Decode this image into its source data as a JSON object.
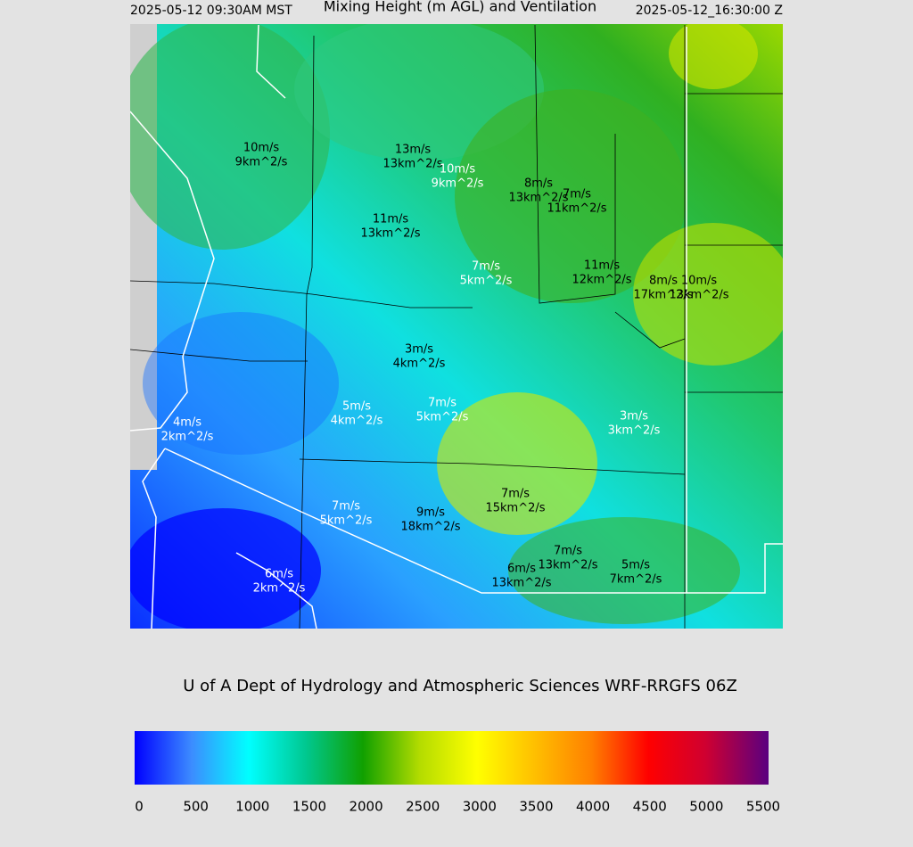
{
  "header": {
    "local_time": "2025-05-12 09:30AM MST",
    "title": "Mixing Height (m AGL) and Ventilation",
    "utc_time": "2025-05-12_16:30:00 Z"
  },
  "map": {
    "labels": [
      {
        "speed": "10m/s",
        "ventilation": "9km^2/s"
      },
      {
        "speed": "13m/s",
        "ventilation": "13km^2/s"
      },
      {
        "speed": "10m/s",
        "ventilation": "9km^2/s"
      },
      {
        "speed": "8m/s",
        "ventilation": "13km^2/s"
      },
      {
        "speed": "7m/s",
        "ventilation": "11km^2/s"
      },
      {
        "speed": "11m/s",
        "ventilation": "13km^2/s"
      },
      {
        "speed": "7m/s",
        "ventilation": "5km^2/s"
      },
      {
        "speed": "11m/s",
        "ventilation": "12km^2/s"
      },
      {
        "speed": "8m/s",
        "ventilation": "17km^2/s"
      },
      {
        "speed": "10m/s",
        "ventilation": "13km^2/s"
      },
      {
        "speed": "3m/s",
        "ventilation": "4km^2/s"
      },
      {
        "speed": "5m/s",
        "ventilation": "4km^2/s"
      },
      {
        "speed": "7m/s",
        "ventilation": "5km^2/s"
      },
      {
        "speed": "4m/s",
        "ventilation": "2km^2/s"
      },
      {
        "speed": "3m/s",
        "ventilation": "3km^2/s"
      },
      {
        "speed": "7m/s",
        "ventilation": "15km^2/s"
      },
      {
        "speed": "7m/s",
        "ventilation": "5km^2/s"
      },
      {
        "speed": "9m/s",
        "ventilation": "18km^2/s"
      },
      {
        "speed": "7m/s",
        "ventilation": "13km^2/s"
      },
      {
        "speed": "6m/s",
        "ventilation": "13km^2/s"
      },
      {
        "speed": "5m/s",
        "ventilation": "7km^2/s"
      },
      {
        "speed": "6m/s",
        "ventilation": "2km^2/s"
      }
    ]
  },
  "footer": {
    "credit": "U of A Dept of Hydrology and Atmospheric Sciences WRF-RRGFS 06Z"
  },
  "colorbar": {
    "ticks": [
      0,
      500,
      1000,
      1500,
      2000,
      2500,
      3000,
      3500,
      4000,
      4500,
      5000,
      5500
    ]
  }
}
